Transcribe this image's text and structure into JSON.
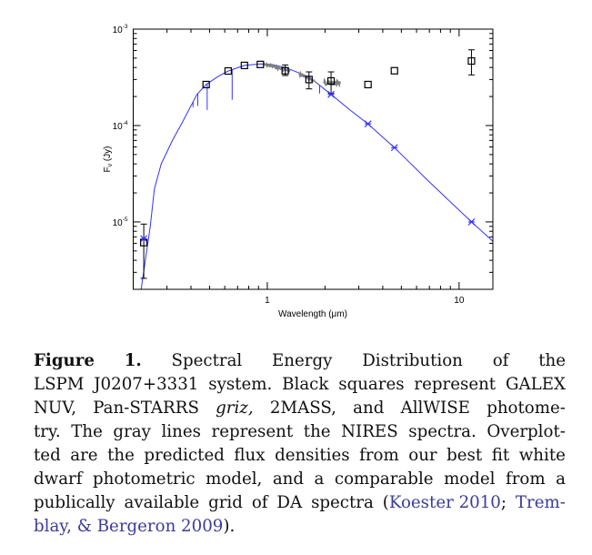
{
  "chart_data": {
    "type": "scatter",
    "xlabel": "Wavelength (μm)",
    "ylabel": "F_ν (Jy)",
    "ylabel_main": "F",
    "ylabel_sub": "ν",
    "ylabel_unit": " (Jy)",
    "xscale": "log",
    "yscale": "log",
    "xlim": [
      0.2,
      15
    ],
    "ylim": [
      2e-06,
      0.001
    ],
    "x_ticks": [
      {
        "value": 1,
        "label": "1"
      },
      {
        "value": 10,
        "label": "10"
      }
    ],
    "y_ticks": [
      {
        "value": 0.001,
        "base": "10",
        "exp": "-3"
      },
      {
        "value": 0.0001,
        "base": "10",
        "exp": "-4"
      },
      {
        "value": 1e-05,
        "base": "10",
        "exp": "-5"
      }
    ],
    "grid": false,
    "colors": {
      "photometry": "#000000",
      "model": "#3333ff",
      "spectrum": "#808080"
    },
    "photometry": [
      {
        "band": "GALEX NUV",
        "x": 0.227,
        "y": 6.1e-06,
        "ylo": 2.6e-06,
        "yhi": 9.5e-06
      },
      {
        "band": "g",
        "x": 0.48,
        "y": 0.000266
      },
      {
        "band": "r",
        "x": 0.625,
        "y": 0.000368
      },
      {
        "band": "i",
        "x": 0.76,
        "y": 0.00042
      },
      {
        "band": "z",
        "x": 0.92,
        "y": 0.00043
      },
      {
        "band": "J",
        "x": 1.24,
        "y": 0.00037,
        "ylo": 0.00033,
        "yhi": 0.000425
      },
      {
        "band": "H",
        "x": 1.65,
        "y": 0.0003,
        "ylo": 0.00024,
        "yhi": 0.00036
      },
      {
        "band": "K",
        "x": 2.15,
        "y": 0.00029,
        "ylo": 0.000215,
        "yhi": 0.00036
      },
      {
        "band": "W1",
        "x": 3.35,
        "y": 0.000266
      },
      {
        "band": "W2",
        "x": 4.6,
        "y": 0.00037
      },
      {
        "band": "W3",
        "x": 11.6,
        "y": 0.000467,
        "ylo": 0.000335,
        "yhi": 0.00061
      }
    ],
    "model_photometry": [
      {
        "x": 0.227,
        "y": 6.7e-06
      },
      {
        "x": 2.15,
        "y": 0.00021
      },
      {
        "x": 3.35,
        "y": 0.000104
      },
      {
        "x": 4.6,
        "y": 5.9e-05
      },
      {
        "x": 11.6,
        "y": 1e-05
      }
    ],
    "model_curve": [
      [
        0.22,
        2e-06
      ],
      [
        0.245,
        8.8e-06
      ],
      [
        0.258,
        2.2e-05
      ],
      [
        0.28,
        4e-05
      ],
      [
        0.32,
        7e-05
      ],
      [
        0.36,
        0.000107
      ],
      [
        0.43,
        0.00021
      ],
      [
        0.48,
        0.000266
      ],
      [
        0.55,
        0.00032
      ],
      [
        0.625,
        0.000368
      ],
      [
        0.76,
        0.00042
      ],
      [
        0.92,
        0.000435
      ],
      [
        1.05,
        0.00043
      ],
      [
        1.24,
        0.0004
      ],
      [
        1.65,
        0.00032
      ],
      [
        2.15,
        0.00021
      ],
      [
        2.7,
        0.000145
      ],
      [
        3.35,
        0.000104
      ],
      [
        4.6,
        5.9e-05
      ],
      [
        7.0,
        2.6e-05
      ],
      [
        11.6,
        1e-05
      ],
      [
        15,
        6.3e-06
      ]
    ],
    "model_absorption_lines": [
      {
        "x": 0.41,
        "depth_to": 0.000155
      },
      {
        "x": 0.434,
        "depth_to": 0.00016
      },
      {
        "x": 0.486,
        "depth_to": 0.000145
      },
      {
        "x": 0.656,
        "depth_to": 0.000185
      },
      {
        "x": 1.875,
        "depth_to": 0.000215
      }
    ],
    "nires_spectrum": [
      [
        [
          0.95,
          0.00043
        ],
        [
          1.05,
          0.000415
        ],
        [
          1.15,
          0.000395
        ],
        [
          1.33,
          0.00036
        ]
      ],
      [
        [
          1.47,
          0.000345
        ],
        [
          1.6,
          0.000315
        ],
        [
          1.78,
          0.000285
        ]
      ],
      [
        [
          1.98,
          0.00028
        ],
        [
          2.1,
          0.000275
        ],
        [
          2.25,
          0.000275
        ],
        [
          2.4,
          0.00028
        ]
      ]
    ]
  },
  "caption": {
    "lines": [
      [
        {
          "t": "Figure",
          "s": "b"
        },
        {
          "t": "1.",
          "s": "b"
        },
        {
          "t": "Spectral"
        },
        {
          "t": "Energy"
        },
        {
          "t": "Distribution"
        },
        {
          "t": "of"
        },
        {
          "t": "the"
        }
      ],
      [
        {
          "t": "LSPM"
        },
        {
          "t": "J0207+3331"
        },
        {
          "t": "system."
        },
        {
          "t": "Black"
        },
        {
          "t": "squares"
        },
        {
          "t": "represent"
        },
        {
          "t": "GALEX"
        }
      ],
      [
        {
          "t": "NUV,"
        },
        {
          "t": "Pan-STARRS"
        },
        {
          "t": "griz",
          "s": "i",
          "after": ","
        },
        {
          "t": "2MASS,"
        },
        {
          "t": "and"
        },
        {
          "t": "AllWISE"
        },
        {
          "t": "photome-"
        }
      ],
      [
        {
          "t": "try."
        },
        {
          "t": "The"
        },
        {
          "t": "gray"
        },
        {
          "t": "lines"
        },
        {
          "t": "represent"
        },
        {
          "t": "the"
        },
        {
          "t": "NIRES"
        },
        {
          "t": "spectra."
        },
        {
          "t": "Overplot-"
        }
      ],
      [
        {
          "t": "ted"
        },
        {
          "t": "are"
        },
        {
          "t": "the"
        },
        {
          "t": "predicted"
        },
        {
          "t": "flux"
        },
        {
          "t": "densities"
        },
        {
          "t": "from"
        },
        {
          "t": "our"
        },
        {
          "t": "best"
        },
        {
          "t": "fit"
        },
        {
          "t": "white"
        }
      ],
      [
        {
          "t": "dwarf"
        },
        {
          "t": "photometric"
        },
        {
          "t": "model,"
        },
        {
          "t": "and"
        },
        {
          "t": "a"
        },
        {
          "t": "comparable"
        },
        {
          "t": "model"
        },
        {
          "t": "from"
        },
        {
          "t": "a"
        }
      ],
      [
        {
          "t": "publically"
        },
        {
          "t": "available"
        },
        {
          "t": "grid"
        },
        {
          "t": "of"
        },
        {
          "t": "DA"
        },
        {
          "t": "spectra"
        },
        {
          "t": "(Koester 2010",
          "s": "lnk",
          "before": "("
        },
        {
          "t": "Trem-",
          "s": "lnk"
        }
      ],
      [
        {
          "t": "blay, & Bergeron 2009",
          "s": "lnk"
        },
        {
          "t": ")."
        }
      ]
    ]
  }
}
